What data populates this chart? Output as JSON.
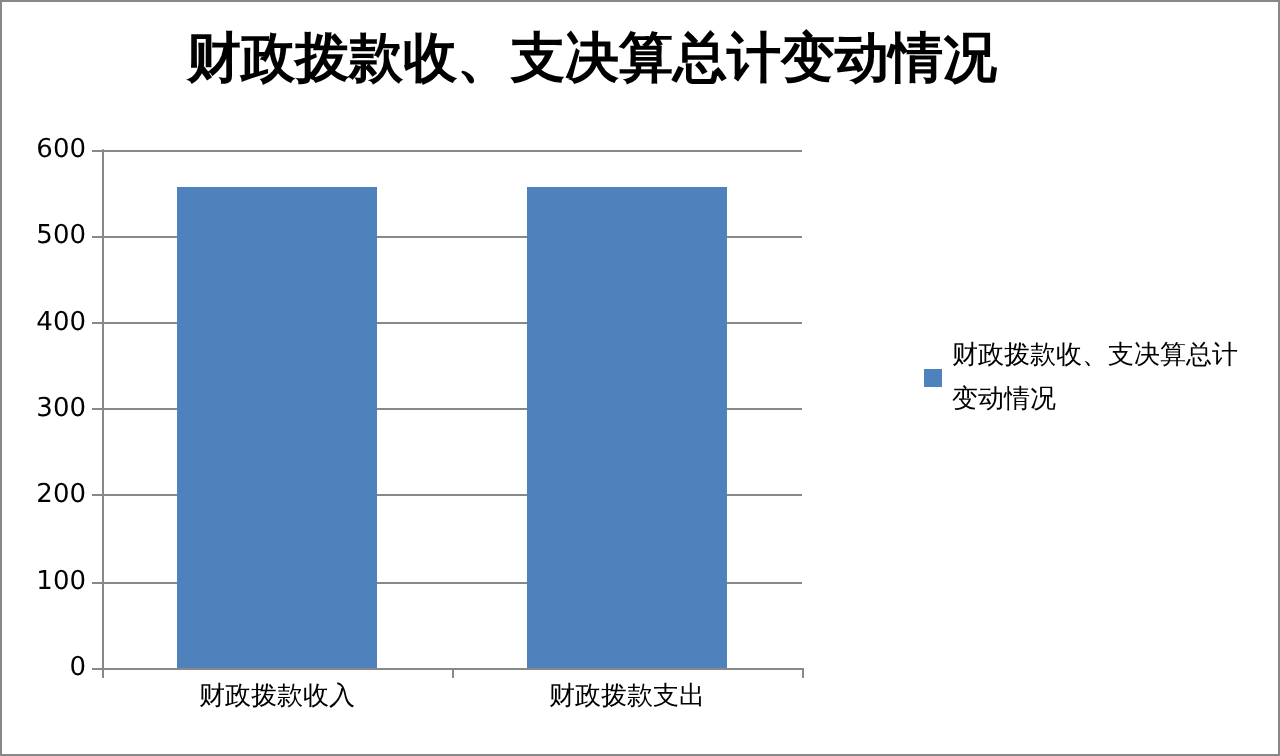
{
  "chart_data": {
    "type": "bar",
    "title": "财政拨款收、支决算总计变动情况",
    "categories": [
      "财政拨款收入",
      "财政拨款支出"
    ],
    "series": [
      {
        "name": "财政拨款收、支决算总计变动情况",
        "color": "#4f81bd",
        "values": [
          557,
          557
        ]
      }
    ],
    "ylim": [
      0,
      600
    ],
    "yticks": [
      0,
      100,
      200,
      300,
      400,
      500,
      600
    ],
    "grid": "y",
    "legend": "right"
  }
}
